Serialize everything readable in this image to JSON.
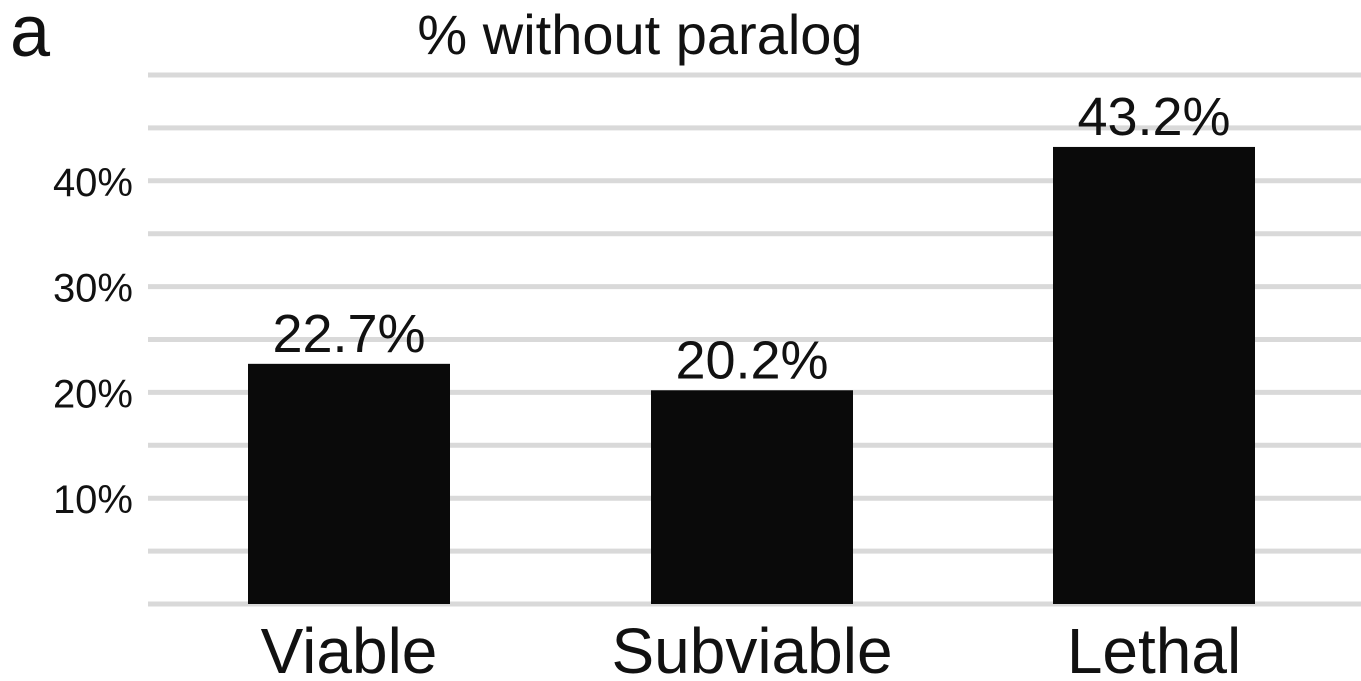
{
  "panel_label": "a",
  "colors": {
    "bar": "#0a0a0a",
    "grid": "#d9d9d9",
    "text": "#111111",
    "background": "#ffffff"
  },
  "chart_data": {
    "type": "bar",
    "title": "% without paralog",
    "xlabel": "",
    "ylabel": "",
    "categories": [
      "Viable",
      "Subviable",
      "Lethal"
    ],
    "values": [
      22.7,
      20.2,
      43.2
    ],
    "data_labels": [
      "22.7%",
      "20.2%",
      "43.2%"
    ],
    "ylim": [
      0,
      50
    ],
    "yticks": [
      10,
      20,
      30,
      40
    ],
    "ytick_labels": [
      "10%",
      "20%",
      "30%",
      "40%"
    ],
    "gridlines": [
      5,
      10,
      15,
      20,
      25,
      30,
      35,
      40,
      45,
      50
    ],
    "grid": true,
    "legend": "none"
  }
}
